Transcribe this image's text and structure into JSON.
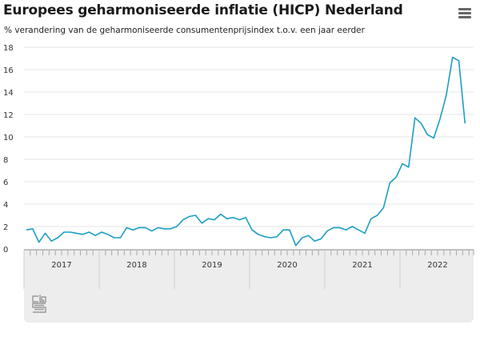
{
  "header": {
    "title": "Europees geharmoniseerde inflatie (HICP) Nederland",
    "subtitle": "% verandering van de geharmoniseerde consumentenprijsindex t.o.v. een jaar eerder",
    "menu_icon": "hamburger-menu-icon"
  },
  "footer": {
    "logo": "cbs-logo"
  },
  "colors": {
    "line": "#1a9ec4",
    "grid": "#e6e6e6",
    "axis": "#888888",
    "panel": "#ededed"
  },
  "chart_data": {
    "type": "line",
    "title": "Europees geharmoniseerde inflatie (HICP) Nederland",
    "subtitle": "% verandering van de geharmoniseerde consumentenprijsindex t.o.v. een jaar eerder",
    "xlabel": "",
    "ylabel": "",
    "ylim": [
      0,
      18
    ],
    "yticks": [
      0,
      2,
      4,
      6,
      8,
      10,
      12,
      14,
      16,
      18
    ],
    "grid": true,
    "legend": "none",
    "x_groups": [
      "2017",
      "2018",
      "2019",
      "2020",
      "2021",
      "2022"
    ],
    "x": [
      "2017-01",
      "2017-02",
      "2017-03",
      "2017-04",
      "2017-05",
      "2017-06",
      "2017-07",
      "2017-08",
      "2017-09",
      "2017-10",
      "2017-11",
      "2017-12",
      "2018-01",
      "2018-02",
      "2018-03",
      "2018-04",
      "2018-05",
      "2018-06",
      "2018-07",
      "2018-08",
      "2018-09",
      "2018-10",
      "2018-11",
      "2018-12",
      "2019-01",
      "2019-02",
      "2019-03",
      "2019-04",
      "2019-05",
      "2019-06",
      "2019-07",
      "2019-08",
      "2019-09",
      "2019-10",
      "2019-11",
      "2019-12",
      "2020-01",
      "2020-02",
      "2020-03",
      "2020-04",
      "2020-05",
      "2020-06",
      "2020-07",
      "2020-08",
      "2020-09",
      "2020-10",
      "2020-11",
      "2020-12",
      "2021-01",
      "2021-02",
      "2021-03",
      "2021-04",
      "2021-05",
      "2021-06",
      "2021-07",
      "2021-08",
      "2021-09",
      "2021-10",
      "2021-11",
      "2021-12",
      "2022-01",
      "2022-02",
      "2022-03",
      "2022-04",
      "2022-05",
      "2022-06",
      "2022-07",
      "2022-08",
      "2022-09",
      "2022-10",
      "2022-11"
    ],
    "series": [
      {
        "name": "HICP Nederland",
        "values": [
          1.7,
          1.8,
          0.6,
          1.4,
          0.7,
          1.0,
          1.5,
          1.5,
          1.4,
          1.3,
          1.5,
          1.2,
          1.5,
          1.3,
          1.0,
          1.0,
          1.9,
          1.7,
          1.9,
          1.9,
          1.6,
          1.9,
          1.8,
          1.8,
          2.0,
          2.6,
          2.9,
          3.0,
          2.3,
          2.7,
          2.6,
          3.1,
          2.7,
          2.8,
          2.6,
          2.8,
          1.7,
          1.3,
          1.1,
          1.0,
          1.1,
          1.7,
          1.7,
          0.3,
          1.0,
          1.2,
          0.7,
          0.9,
          1.6,
          1.9,
          1.9,
          1.7,
          2.0,
          1.7,
          1.4,
          2.7,
          3.0,
          3.7,
          5.9,
          6.4,
          7.6,
          7.3,
          11.7,
          11.2,
          10.2,
          9.9,
          11.6,
          13.7,
          17.1,
          16.8,
          11.2
        ]
      }
    ]
  }
}
